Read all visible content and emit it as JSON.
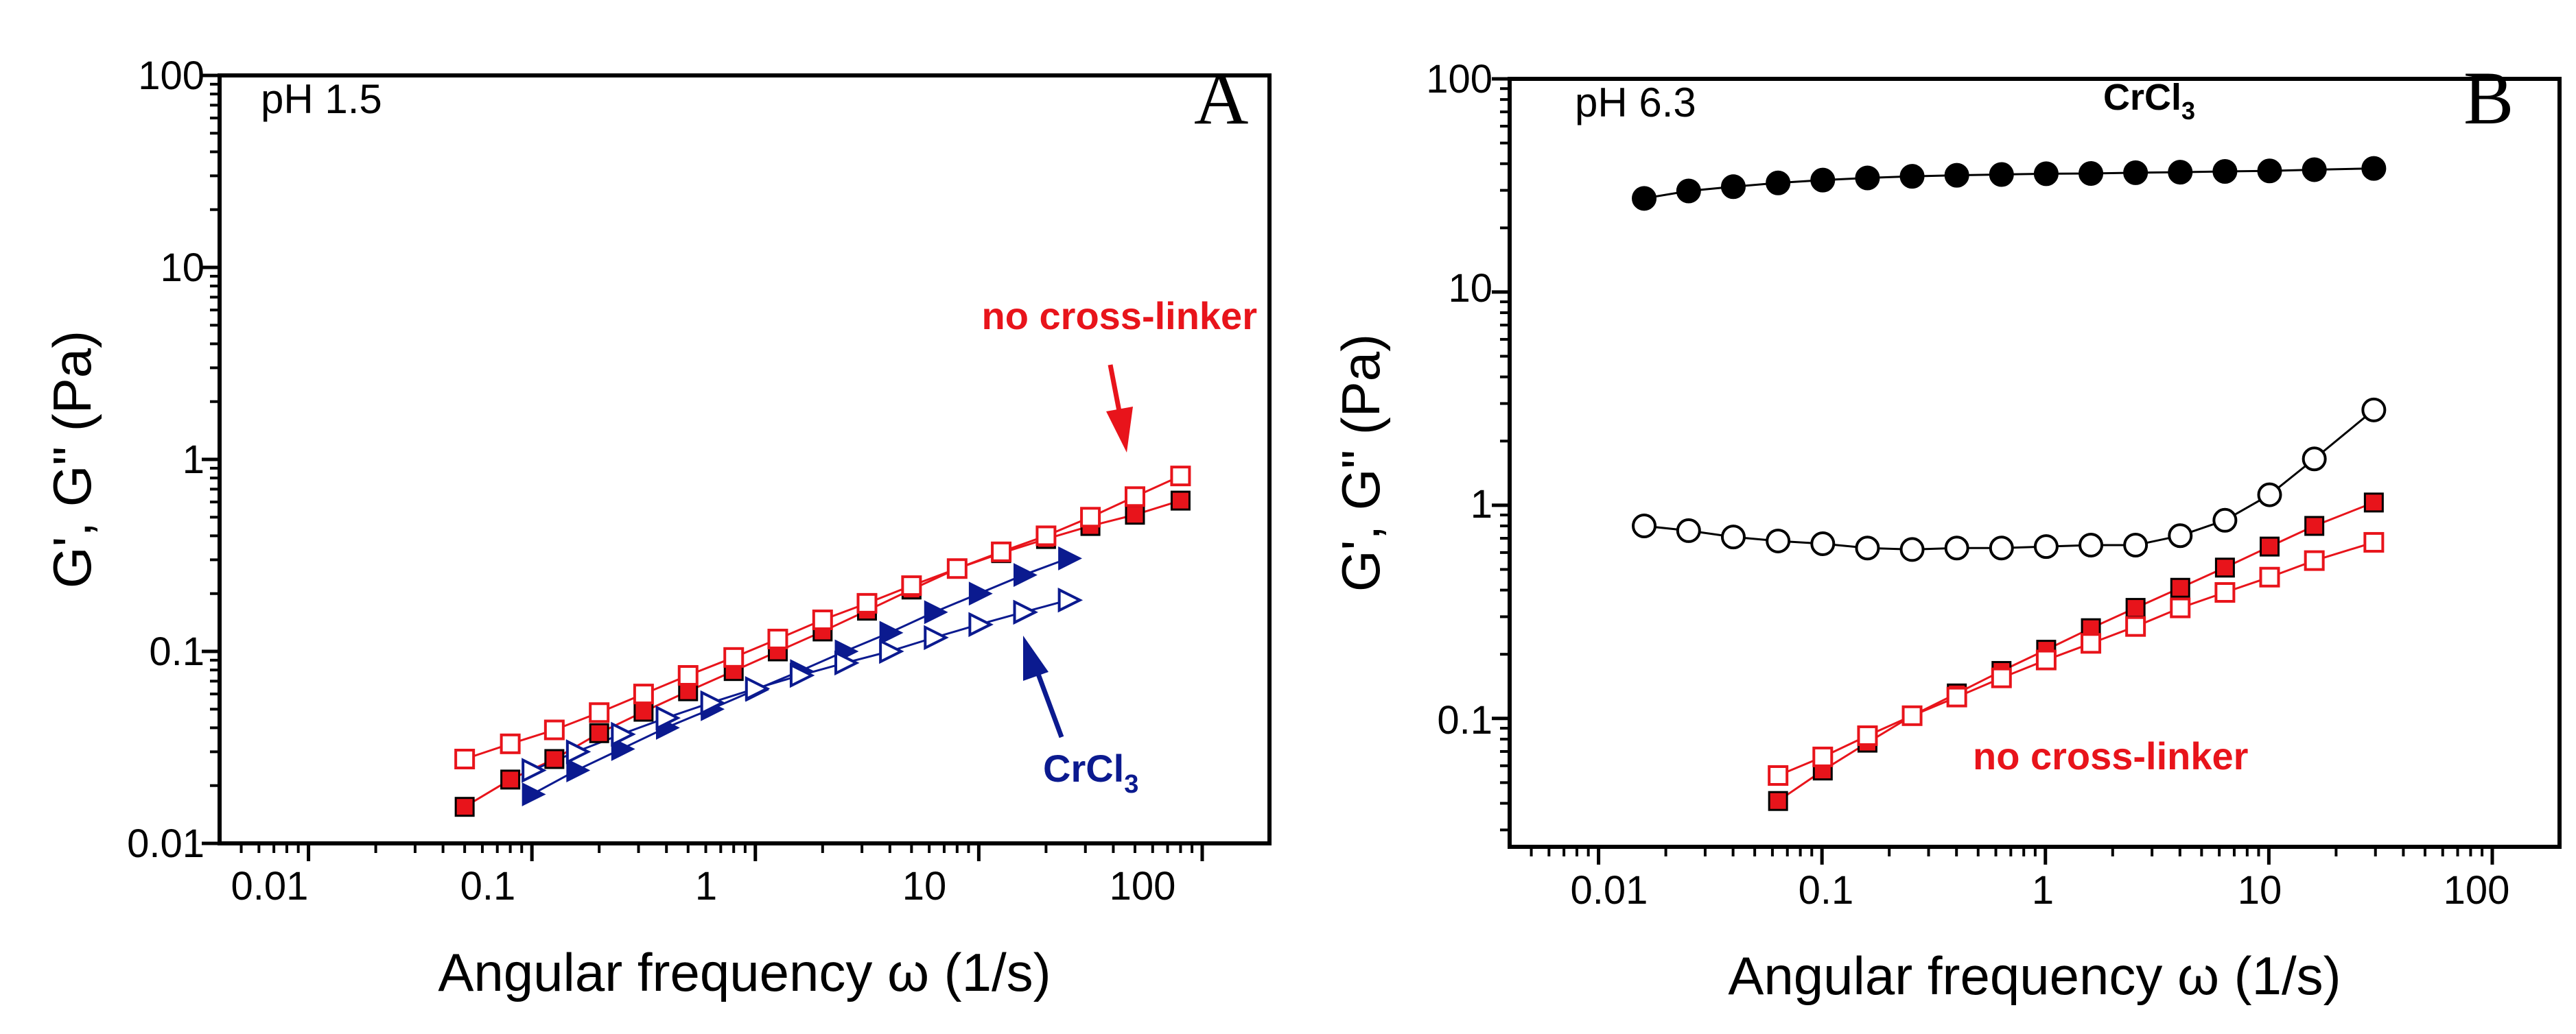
{
  "chart_data": [
    {
      "type": "scatter",
      "panel_label": "A",
      "condition": "pH 1.5",
      "xlabel": "Angular frequency ω (1/s)",
      "ylabel": "G', G\" (Pa)",
      "x_scale": "log",
      "y_scale": "log",
      "xlim": [
        0.004,
        200
      ],
      "ylim": [
        0.01,
        100
      ],
      "x_ticks": [
        0.01,
        0.1,
        1,
        10,
        100
      ],
      "x_tick_labels": [
        "0.01",
        "0.1",
        "1",
        "10",
        "100"
      ],
      "y_ticks": [
        0.01,
        0.1,
        1,
        10,
        100
      ],
      "y_tick_labels": [
        "0.01",
        "0.1",
        "1",
        "10",
        "100"
      ],
      "annotations": [
        {
          "label": "no_crosslinker",
          "text": "no cross-linker",
          "color": "#e8141b"
        },
        {
          "label": "crcl3",
          "text": "CrCl",
          "subscript": "3",
          "color": "#0b1a8f"
        }
      ],
      "series": [
        {
          "name": "G' no cross-linker",
          "marker": "square-filled",
          "color": "#e8141b",
          "x": [
            0.05,
            0.08,
            0.126,
            0.2,
            0.316,
            0.5,
            0.8,
            1.26,
            2.0,
            3.16,
            5.0,
            8.0,
            12.6,
            20,
            31.6,
            50,
            80
          ],
          "y": [
            0.0155,
            0.0215,
            0.0275,
            0.0375,
            0.0485,
            0.062,
            0.079,
            0.1,
            0.127,
            0.163,
            0.21,
            0.27,
            0.325,
            0.385,
            0.45,
            0.515,
            0.61
          ]
        },
        {
          "name": "G\" no cross-linker",
          "marker": "square-open",
          "color": "#e8141b",
          "x": [
            0.05,
            0.08,
            0.126,
            0.2,
            0.316,
            0.5,
            0.8,
            1.26,
            2.0,
            3.16,
            5.0,
            8.0,
            12.6,
            20,
            31.6,
            50,
            80
          ],
          "y": [
            0.0275,
            0.033,
            0.039,
            0.048,
            0.06,
            0.075,
            0.093,
            0.116,
            0.146,
            0.178,
            0.22,
            0.27,
            0.33,
            0.4,
            0.5,
            0.64,
            0.82
          ]
        },
        {
          "name": "G' CrCl3",
          "marker": "triangle-right-filled",
          "color": "#0b1a8f",
          "x": [
            0.1,
            0.158,
            0.251,
            0.398,
            0.631,
            1.0,
            1.585,
            2.512,
            3.981,
            6.31,
            10.0,
            15.85,
            25.12
          ],
          "y": [
            0.018,
            0.024,
            0.031,
            0.04,
            0.05,
            0.063,
            0.079,
            0.1,
            0.125,
            0.16,
            0.2,
            0.25,
            0.305
          ]
        },
        {
          "name": "G\" CrCl3",
          "marker": "triangle-right-open",
          "color": "#0b1a8f",
          "x": [
            0.1,
            0.158,
            0.251,
            0.398,
            0.631,
            1.0,
            1.585,
            2.512,
            3.981,
            6.31,
            10.0,
            15.85,
            25.12
          ],
          "y": [
            0.024,
            0.03,
            0.037,
            0.045,
            0.054,
            0.064,
            0.075,
            0.087,
            0.1,
            0.118,
            0.138,
            0.16,
            0.185
          ]
        }
      ]
    },
    {
      "type": "scatter",
      "panel_label": "B",
      "condition": "pH 6.3",
      "xlabel": "Angular frequency ω (1/s)",
      "ylabel": "G', G\" (Pa)",
      "x_scale": "log",
      "y_scale": "log",
      "xlim": [
        0.004,
        200
      ],
      "ylim": [
        0.025,
        100
      ],
      "x_ticks": [
        0.01,
        0.1,
        1,
        10,
        100
      ],
      "x_tick_labels": [
        "0.01",
        "0.1",
        "1",
        "10",
        "100"
      ],
      "y_ticks": [
        0.1,
        1,
        10,
        100
      ],
      "y_tick_labels": [
        "0.1",
        "1",
        "10",
        "100"
      ],
      "annotations": [
        {
          "label": "crcl3",
          "text": "CrCl",
          "subscript": "3",
          "color": "#000000"
        },
        {
          "label": "no_crosslinker",
          "text": "no cross-linker",
          "color": "#e8141b"
        }
      ],
      "series": [
        {
          "name": "G' CrCl3",
          "marker": "circle-filled",
          "color": "#000000",
          "x": [
            0.016,
            0.0253,
            0.0401,
            0.0636,
            0.1008,
            0.1598,
            0.2532,
            0.4013,
            0.636,
            1.008,
            1.598,
            2.532,
            4.013,
            6.36,
            10.08,
            15.98,
            29.5
          ],
          "y": [
            27.5,
            29.8,
            31.2,
            32.5,
            33.5,
            34.3,
            34.9,
            35.3,
            35.6,
            35.9,
            36.0,
            36.3,
            36.5,
            36.8,
            37.0,
            37.5,
            38.0
          ]
        },
        {
          "name": "G\" CrCl3",
          "marker": "circle-open",
          "color": "#000000",
          "x": [
            0.016,
            0.0253,
            0.0401,
            0.0636,
            0.1008,
            0.1598,
            0.2532,
            0.4013,
            0.636,
            1.008,
            1.598,
            2.532,
            4.013,
            6.36,
            10.08,
            15.98,
            29.5
          ],
          "y": [
            0.8,
            0.76,
            0.71,
            0.68,
            0.66,
            0.63,
            0.62,
            0.63,
            0.63,
            0.64,
            0.65,
            0.65,
            0.72,
            0.85,
            1.12,
            1.65,
            2.8
          ]
        },
        {
          "name": "G' no cross-linker",
          "marker": "square-filled",
          "color": "#e8141b",
          "x": [
            0.0636,
            0.1008,
            0.1598,
            0.2532,
            0.4013,
            0.636,
            1.008,
            1.598,
            2.532,
            4.013,
            6.36,
            10.08,
            15.98,
            29.5
          ],
          "y": [
            0.041,
            0.057,
            0.077,
            0.103,
            0.131,
            0.167,
            0.21,
            0.265,
            0.33,
            0.41,
            0.51,
            0.64,
            0.8,
            1.03
          ]
        },
        {
          "name": "G\" no cross-linker",
          "marker": "square-open",
          "color": "#e8141b",
          "x": [
            0.0636,
            0.1008,
            0.1598,
            0.2532,
            0.4013,
            0.636,
            1.008,
            1.598,
            2.532,
            4.013,
            6.36,
            10.08,
            15.98,
            29.5
          ],
          "y": [
            0.054,
            0.066,
            0.083,
            0.103,
            0.126,
            0.155,
            0.188,
            0.225,
            0.27,
            0.33,
            0.39,
            0.46,
            0.55,
            0.67
          ]
        }
      ]
    }
  ]
}
